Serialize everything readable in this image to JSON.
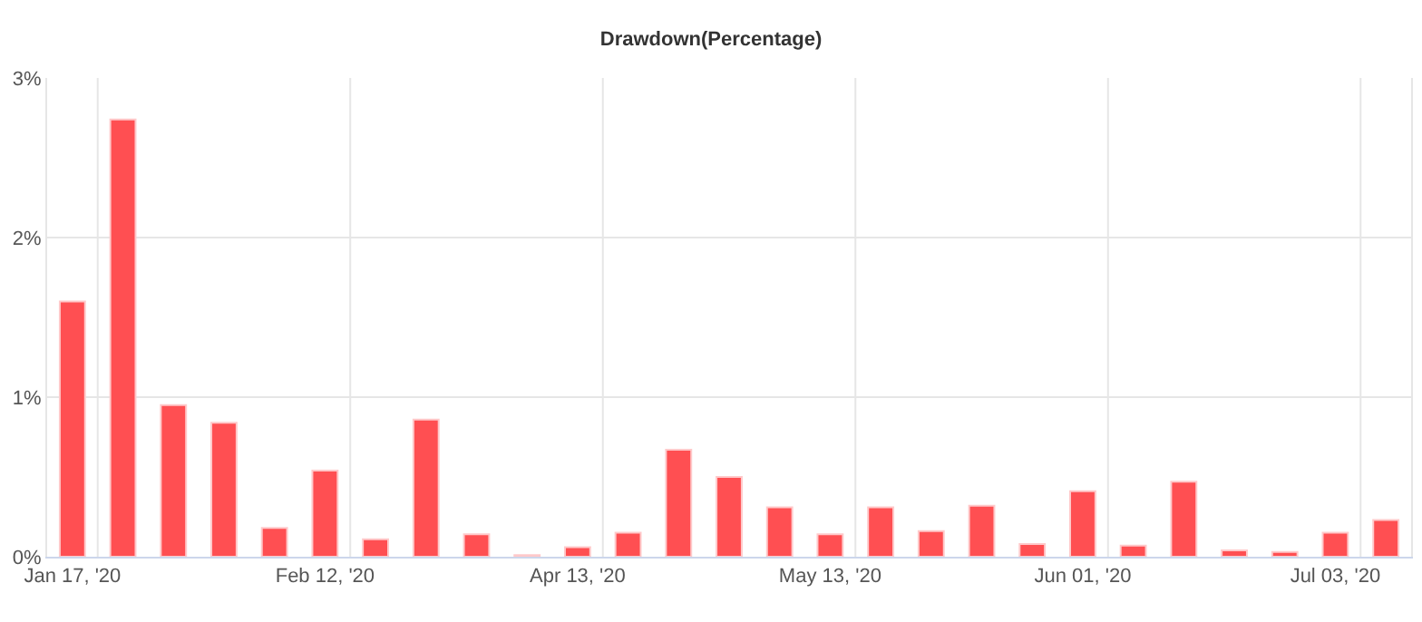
{
  "chart_data": {
    "type": "bar",
    "title": "Drawdown(Percentage)",
    "categories": [
      "Jan 17, '20",
      null,
      null,
      null,
      null,
      "Feb 12, '20",
      null,
      null,
      null,
      null,
      "Apr 13, '20",
      null,
      null,
      null,
      null,
      "May 13, '20",
      null,
      null,
      null,
      null,
      "Jun 01, '20",
      null,
      null,
      null,
      null,
      "Jul 03, '20",
      null
    ],
    "values": [
      1.6,
      2.74,
      0.95,
      0.84,
      0.18,
      0.54,
      0.11,
      0.86,
      0.14,
      0.01,
      0.06,
      0.15,
      0.67,
      0.5,
      0.31,
      0.14,
      0.31,
      0.16,
      0.32,
      0.08,
      0.41,
      0.07,
      0.47,
      0.04,
      0.03,
      0.15,
      0.23
    ],
    "color": "#ff4f52",
    "ylim": [
      0,
      3
    ],
    "yticks": [
      {
        "value": 0,
        "label": "0%"
      },
      {
        "value": 1,
        "label": "1%"
      },
      {
        "value": 2,
        "label": "2%"
      },
      {
        "value": 3,
        "label": "3%"
      }
    ],
    "grid": true
  }
}
